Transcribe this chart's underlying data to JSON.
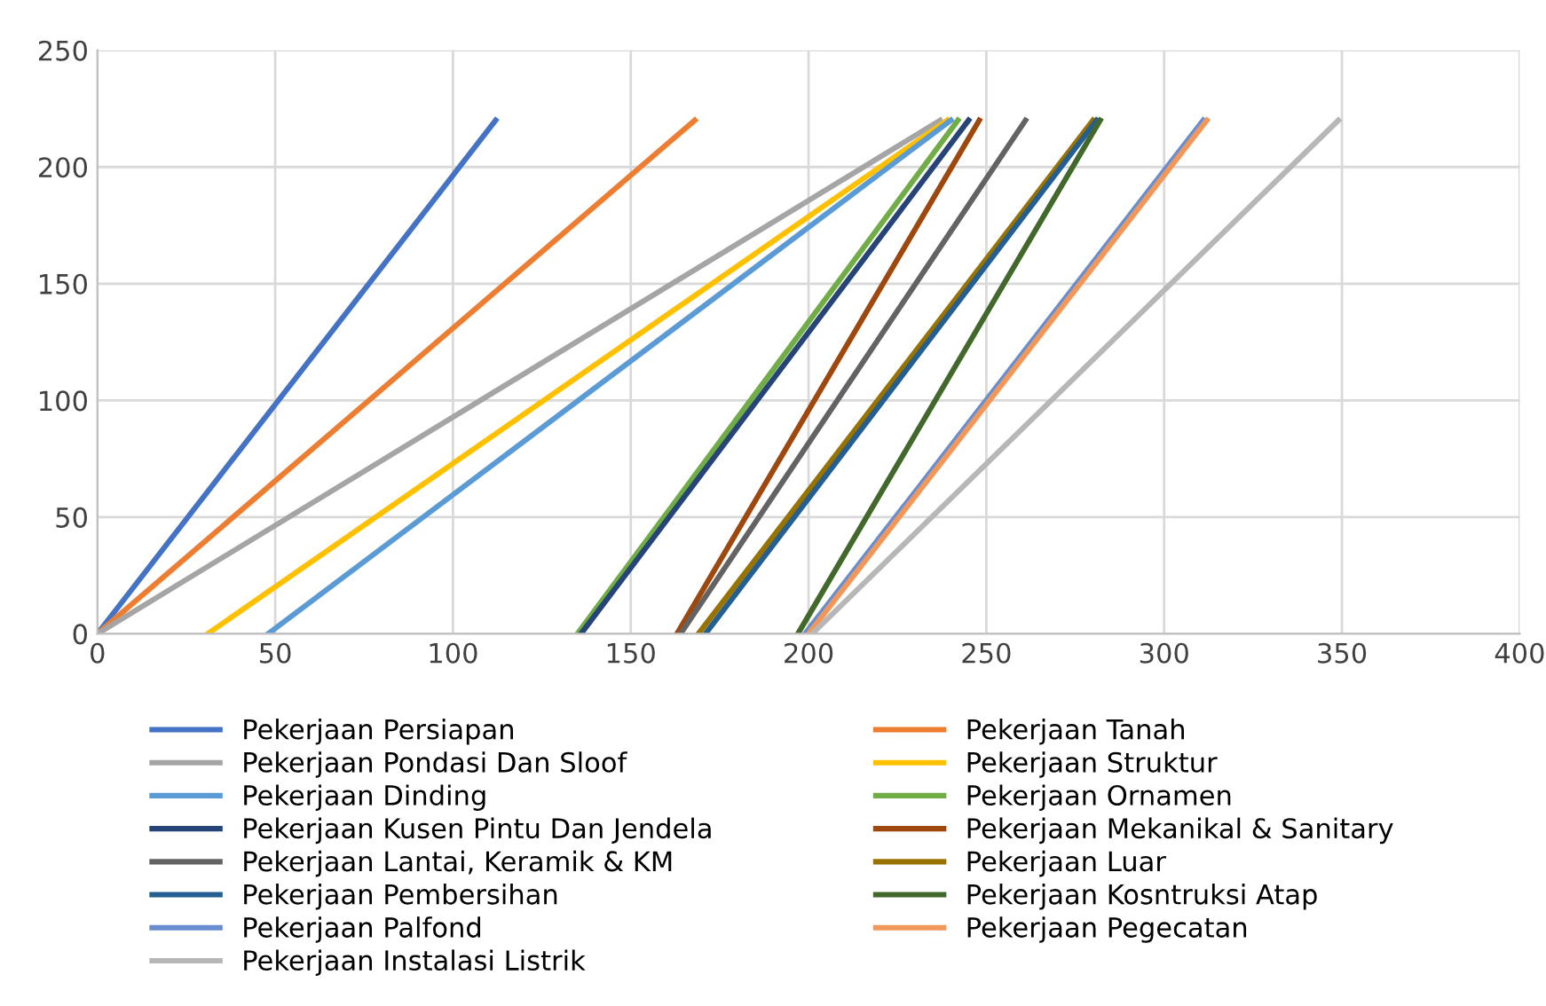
{
  "chart_data": {
    "type": "line",
    "xlim": [
      0,
      400
    ],
    "ylim": [
      0,
      250
    ],
    "xticks": [
      0,
      50,
      100,
      150,
      200,
      250,
      300,
      350,
      400
    ],
    "yticks": [
      0,
      50,
      100,
      150,
      200,
      250
    ],
    "grid": true,
    "legend": "bottom",
    "marker": "none",
    "line_style": "solid",
    "series": [
      {
        "name": "Pekerjaan Persiapan",
        "color": "#4472c4",
        "x": [
          0,
          112
        ],
        "values": [
          0,
          220
        ]
      },
      {
        "name": "Pekerjaan Tanah",
        "color": "#ed7d31",
        "x": [
          0,
          168
        ],
        "values": [
          0,
          220
        ]
      },
      {
        "name": "Pekerjaan Pondasi Dan Sloof",
        "color": "#a5a5a5",
        "x": [
          0,
          237
        ],
        "values": [
          0,
          220
        ]
      },
      {
        "name": "Pekerjaan Struktur",
        "color": "#ffc000",
        "x": [
          31,
          239
        ],
        "values": [
          0,
          220
        ]
      },
      {
        "name": "Pekerjaan Dinding",
        "color": "#5b9bd5",
        "x": [
          48,
          240
        ],
        "values": [
          0,
          220
        ]
      },
      {
        "name": "Pekerjaan Ornamen",
        "color": "#70ad47",
        "x": [
          135,
          242
        ],
        "values": [
          0,
          220
        ]
      },
      {
        "name": "Pekerjaan Kusen Pintu Dan Jendela",
        "color": "#264478",
        "x": [
          136,
          245
        ],
        "values": [
          0,
          220
        ]
      },
      {
        "name": "Pekerjaan Mekanikal & Sanitary",
        "color": "#9e480e",
        "x": [
          163,
          248
        ],
        "values": [
          0,
          220
        ]
      },
      {
        "name": "Pekerjaan Lantai, Keramik & KM",
        "color": "#636363",
        "x": [
          164,
          261
        ],
        "values": [
          0,
          220
        ]
      },
      {
        "name": "Pekerjaan Luar",
        "color": "#997300",
        "x": [
          169,
          280
        ],
        "values": [
          0,
          220
        ]
      },
      {
        "name": "Pekerjaan Pembersihan",
        "color": "#255e91",
        "x": [
          171,
          281
        ],
        "values": [
          0,
          220
        ]
      },
      {
        "name": "Pekerjaan Kosntruksi Atap",
        "color": "#43682b",
        "x": [
          197,
          282
        ],
        "values": [
          0,
          220
        ]
      },
      {
        "name": "Pekerjaan Palfond",
        "color": "#698ed0",
        "x": [
          199,
          311
        ],
        "values": [
          0,
          220
        ]
      },
      {
        "name": "Pekerjaan Pegecatan",
        "color": "#f1975a",
        "x": [
          200,
          312
        ],
        "values": [
          0,
          220
        ]
      },
      {
        "name": "Pekerjaan Instalasi Listrik",
        "color": "#b7b7b7",
        "x": [
          201,
          349
        ],
        "values": [
          0,
          220
        ]
      }
    ]
  }
}
